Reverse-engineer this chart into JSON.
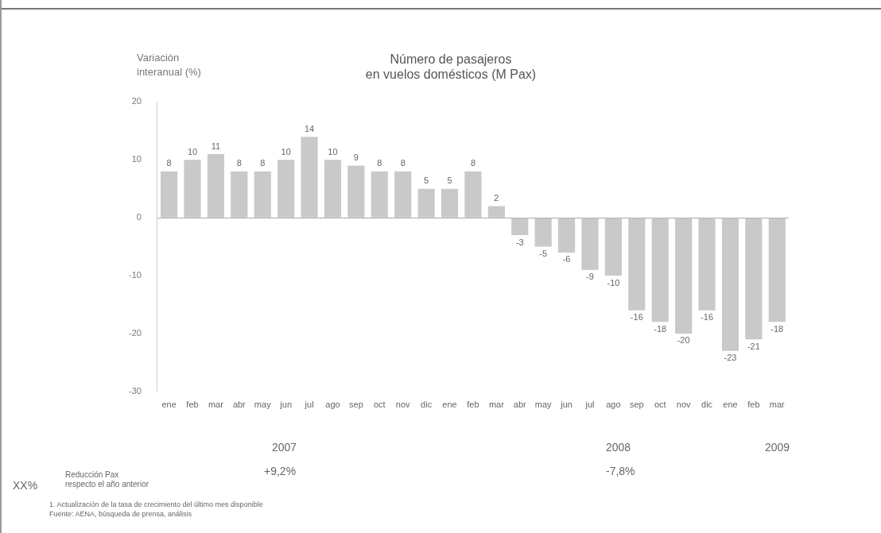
{
  "chart_data": {
    "type": "bar",
    "title": "Número de pasajeros\nen vuelos domésticos (M Pax)",
    "ylabel": "Variación\ninteranual (%)",
    "categories": [
      "ene",
      "feb",
      "mar",
      "abr",
      "may",
      "jun",
      "jul",
      "ago",
      "sep",
      "oct",
      "nov",
      "dic",
      "ene",
      "feb",
      "mar",
      "abr",
      "may",
      "jun",
      "jul",
      "ago",
      "sep",
      "oct",
      "nov",
      "dic",
      "ene",
      "feb",
      "mar"
    ],
    "values": [
      8,
      10,
      11,
      8,
      8,
      10,
      14,
      10,
      9,
      8,
      8,
      5,
      5,
      8,
      2,
      -3,
      -5,
      -6,
      -9,
      -10,
      -16,
      -18,
      -20,
      -16,
      -23,
      -21,
      -18
    ],
    "color": "#c9c9c9",
    "ylim": [
      -30,
      20
    ],
    "yticks": [
      20,
      10,
      0,
      -10,
      -20,
      -30
    ],
    "data_labels": true,
    "annotations": [
      "2007",
      "2008",
      "2009",
      "+9,2%",
      "-7,8%",
      "XX%",
      "Reducción Pax\nrespecto el año anterior",
      "1. Actualización de la tasa de crecimiento del último mes disponible",
      "Fuente: AENA, búsqueda de prensa, análisis"
    ]
  }
}
